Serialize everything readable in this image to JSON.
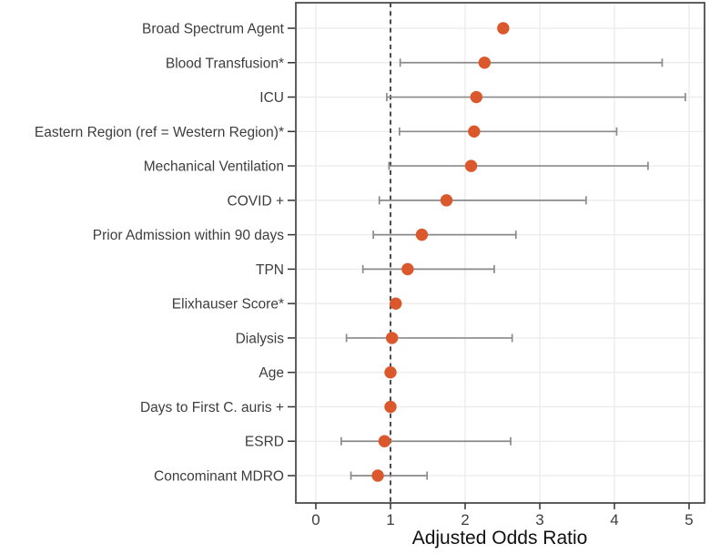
{
  "figure": {
    "background": "#ffffff"
  },
  "chart_data": {
    "type": "scatter",
    "subtype": "forest_plot",
    "title": "",
    "xlabel": "Adjusted Odds Ratio",
    "ylabel": "",
    "xlim": [
      -0.27,
      5.2
    ],
    "xticks": [
      0,
      1,
      2,
      3,
      4,
      5
    ],
    "reference_line_x": 1,
    "grid": "major_only",
    "legend": "none",
    "categories": [
      "Broad Spectrum Agent",
      "Blood Transfusion*",
      "ICU",
      "Eastern Region (ref = Western Region)*",
      "Mechanical Ventilation",
      "COVID +",
      "Prior Admission within 90 days",
      "TPN",
      "Elixhauser Score*",
      "Dialysis",
      "Age",
      "Days to First C. auris +",
      "ESRD",
      "Concominant MDRO"
    ],
    "points": [
      {
        "label": "Broad Spectrum Agent",
        "or": 2.51,
        "ci_low": null,
        "ci_high": null
      },
      {
        "label": "Blood Transfusion*",
        "or": 2.26,
        "ci_low": 1.13,
        "ci_high": 4.64
      },
      {
        "label": "ICU",
        "or": 2.15,
        "ci_low": 0.95,
        "ci_high": 4.95
      },
      {
        "label": "Eastern Region (ref = Western Region)*",
        "or": 2.12,
        "ci_low": 1.12,
        "ci_high": 4.03
      },
      {
        "label": "Mechanical Ventilation",
        "or": 2.08,
        "ci_low": 0.98,
        "ci_high": 4.45
      },
      {
        "label": "COVID +",
        "or": 1.75,
        "ci_low": 0.85,
        "ci_high": 3.62
      },
      {
        "label": "Prior Admission within 90 days",
        "or": 1.42,
        "ci_low": 0.77,
        "ci_high": 2.68
      },
      {
        "label": "TPN",
        "or": 1.23,
        "ci_low": 0.63,
        "ci_high": 2.39
      },
      {
        "label": "Elixhauser Score*",
        "or": 1.07,
        "ci_low": null,
        "ci_high": null
      },
      {
        "label": "Dialysis",
        "or": 1.02,
        "ci_low": 0.41,
        "ci_high": 2.63
      },
      {
        "label": "Age",
        "or": 1.0,
        "ci_low": null,
        "ci_high": null
      },
      {
        "label": "Days to First C. auris +",
        "or": 1.0,
        "ci_low": null,
        "ci_high": null
      },
      {
        "label": "ESRD",
        "or": 0.92,
        "ci_low": 0.34,
        "ci_high": 2.61
      },
      {
        "label": "Concominant MDRO",
        "or": 0.83,
        "ci_low": 0.47,
        "ci_high": 1.49
      }
    ],
    "colors": {
      "point": "#DB582C",
      "error_bar": "#8a8a8a",
      "reference_line": "#2d2d2d",
      "grid": "#eaeaea",
      "panel_border": "#4d4d4d",
      "tick": "#333333",
      "label_text": "#3d3d3d",
      "axis_title_text": "#111111",
      "panel_background": "#ffffff"
    }
  }
}
